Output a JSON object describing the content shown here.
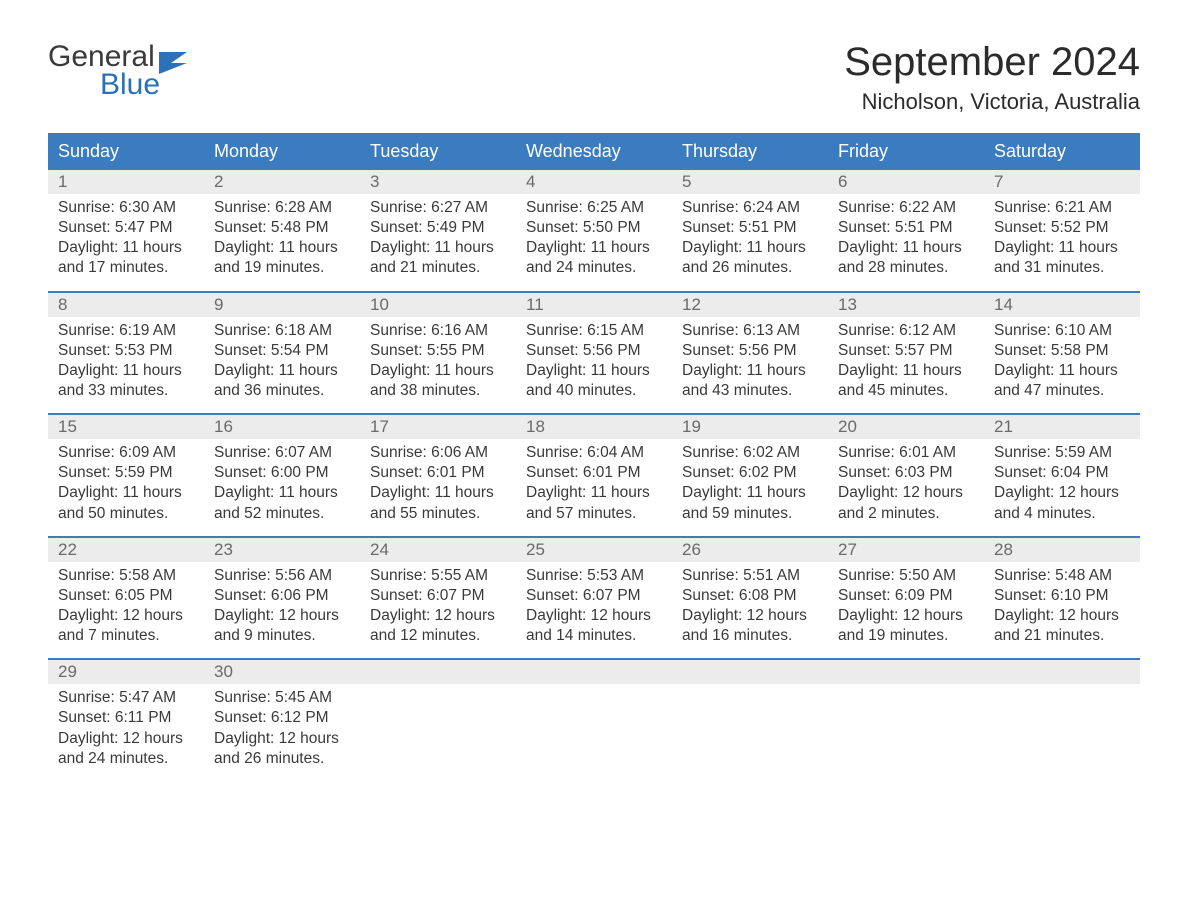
{
  "logo": {
    "text1": "General",
    "text2": "Blue"
  },
  "title": "September 2024",
  "location": "Nicholson, Victoria, Australia",
  "colors": {
    "header_bg": "#3b7bbf",
    "header_text": "#ffffff",
    "daynum_bg": "#ececec",
    "daynum_text": "#6a6a6a",
    "body_text": "#3a3a3a",
    "logo_blue": "#2a71b8",
    "border": "#3b7bbf"
  },
  "weekdays": [
    "Sunday",
    "Monday",
    "Tuesday",
    "Wednesday",
    "Thursday",
    "Friday",
    "Saturday"
  ],
  "weeks": [
    [
      {
        "n": "1",
        "sr": "6:30 AM",
        "ss": "5:47 PM",
        "dl": "11 hours and 17 minutes."
      },
      {
        "n": "2",
        "sr": "6:28 AM",
        "ss": "5:48 PM",
        "dl": "11 hours and 19 minutes."
      },
      {
        "n": "3",
        "sr": "6:27 AM",
        "ss": "5:49 PM",
        "dl": "11 hours and 21 minutes."
      },
      {
        "n": "4",
        "sr": "6:25 AM",
        "ss": "5:50 PM",
        "dl": "11 hours and 24 minutes."
      },
      {
        "n": "5",
        "sr": "6:24 AM",
        "ss": "5:51 PM",
        "dl": "11 hours and 26 minutes."
      },
      {
        "n": "6",
        "sr": "6:22 AM",
        "ss": "5:51 PM",
        "dl": "11 hours and 28 minutes."
      },
      {
        "n": "7",
        "sr": "6:21 AM",
        "ss": "5:52 PM",
        "dl": "11 hours and 31 minutes."
      }
    ],
    [
      {
        "n": "8",
        "sr": "6:19 AM",
        "ss": "5:53 PM",
        "dl": "11 hours and 33 minutes."
      },
      {
        "n": "9",
        "sr": "6:18 AM",
        "ss": "5:54 PM",
        "dl": "11 hours and 36 minutes."
      },
      {
        "n": "10",
        "sr": "6:16 AM",
        "ss": "5:55 PM",
        "dl": "11 hours and 38 minutes."
      },
      {
        "n": "11",
        "sr": "6:15 AM",
        "ss": "5:56 PM",
        "dl": "11 hours and 40 minutes."
      },
      {
        "n": "12",
        "sr": "6:13 AM",
        "ss": "5:56 PM",
        "dl": "11 hours and 43 minutes."
      },
      {
        "n": "13",
        "sr": "6:12 AM",
        "ss": "5:57 PM",
        "dl": "11 hours and 45 minutes."
      },
      {
        "n": "14",
        "sr": "6:10 AM",
        "ss": "5:58 PM",
        "dl": "11 hours and 47 minutes."
      }
    ],
    [
      {
        "n": "15",
        "sr": "6:09 AM",
        "ss": "5:59 PM",
        "dl": "11 hours and 50 minutes."
      },
      {
        "n": "16",
        "sr": "6:07 AM",
        "ss": "6:00 PM",
        "dl": "11 hours and 52 minutes."
      },
      {
        "n": "17",
        "sr": "6:06 AM",
        "ss": "6:01 PM",
        "dl": "11 hours and 55 minutes."
      },
      {
        "n": "18",
        "sr": "6:04 AM",
        "ss": "6:01 PM",
        "dl": "11 hours and 57 minutes."
      },
      {
        "n": "19",
        "sr": "6:02 AM",
        "ss": "6:02 PM",
        "dl": "11 hours and 59 minutes."
      },
      {
        "n": "20",
        "sr": "6:01 AM",
        "ss": "6:03 PM",
        "dl": "12 hours and 2 minutes."
      },
      {
        "n": "21",
        "sr": "5:59 AM",
        "ss": "6:04 PM",
        "dl": "12 hours and 4 minutes."
      }
    ],
    [
      {
        "n": "22",
        "sr": "5:58 AM",
        "ss": "6:05 PM",
        "dl": "12 hours and 7 minutes."
      },
      {
        "n": "23",
        "sr": "5:56 AM",
        "ss": "6:06 PM",
        "dl": "12 hours and 9 minutes."
      },
      {
        "n": "24",
        "sr": "5:55 AM",
        "ss": "6:07 PM",
        "dl": "12 hours and 12 minutes."
      },
      {
        "n": "25",
        "sr": "5:53 AM",
        "ss": "6:07 PM",
        "dl": "12 hours and 14 minutes."
      },
      {
        "n": "26",
        "sr": "5:51 AM",
        "ss": "6:08 PM",
        "dl": "12 hours and 16 minutes."
      },
      {
        "n": "27",
        "sr": "5:50 AM",
        "ss": "6:09 PM",
        "dl": "12 hours and 19 minutes."
      },
      {
        "n": "28",
        "sr": "5:48 AM",
        "ss": "6:10 PM",
        "dl": "12 hours and 21 minutes."
      }
    ],
    [
      {
        "n": "29",
        "sr": "5:47 AM",
        "ss": "6:11 PM",
        "dl": "12 hours and 24 minutes."
      },
      {
        "n": "30",
        "sr": "5:45 AM",
        "ss": "6:12 PM",
        "dl": "12 hours and 26 minutes."
      },
      {
        "empty": true
      },
      {
        "empty": true
      },
      {
        "empty": true
      },
      {
        "empty": true
      },
      {
        "empty": true
      }
    ]
  ],
  "labels": {
    "sunrise": "Sunrise: ",
    "sunset": "Sunset: ",
    "daylight": "Daylight: "
  }
}
